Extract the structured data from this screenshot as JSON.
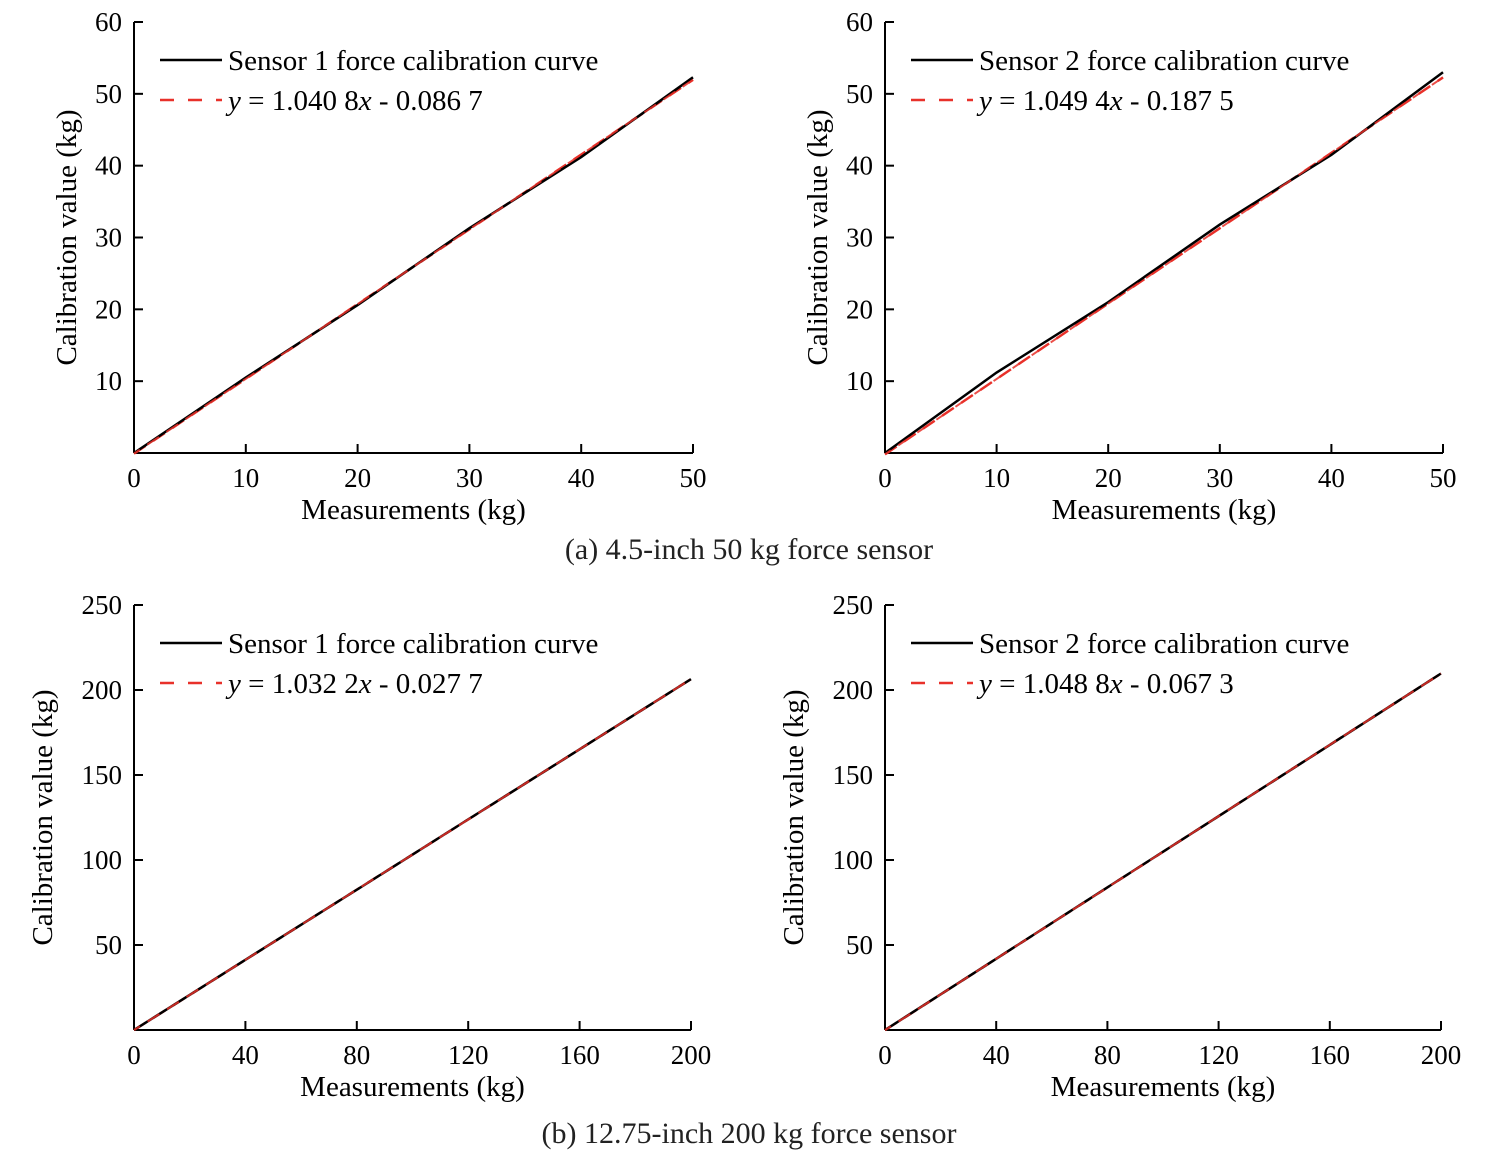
{
  "figure": {
    "captions": [
      "(a) 4.5-inch 50 kg force sensor",
      "(b) 12.75-inch 200 kg force sensor"
    ]
  },
  "colors": {
    "curve": "#000000",
    "fit": "#e8312a",
    "axis": "#000000"
  },
  "chart_data": [
    {
      "id": "a-sensor1",
      "type": "line",
      "xlabel": "Measurements (kg)",
      "ylabel": "Calibration value (kg)",
      "xlim": [
        0,
        50
      ],
      "ylim": [
        0,
        60
      ],
      "xticks": [
        0,
        10,
        20,
        30,
        40,
        50
      ],
      "yticks": [
        10,
        20,
        30,
        40,
        50,
        60
      ],
      "legend_position": "top-left",
      "series": [
        {
          "name": "Sensor 1 force calibration curve",
          "style": "solid",
          "x": [
            0,
            10,
            20,
            30,
            40,
            50
          ],
          "y": [
            0,
            10.5,
            20.6,
            31.3,
            41.2,
            52.3
          ]
        },
        {
          "name": "y = 1.040 8x - 0.086 7",
          "style": "dashed",
          "legend_parts": {
            "y": "y",
            "eq": " = 1.040 8",
            "x": "x",
            "rest": " - 0.086 7"
          },
          "slope": 1.0408,
          "intercept": -0.0867
        }
      ]
    },
    {
      "id": "a-sensor2",
      "type": "line",
      "xlabel": "Measurements (kg)",
      "ylabel": "Calibration value (kg)",
      "xlim": [
        0,
        50
      ],
      "ylim": [
        0,
        60
      ],
      "xticks": [
        0,
        10,
        20,
        30,
        40,
        50
      ],
      "yticks": [
        10,
        20,
        30,
        40,
        50,
        60
      ],
      "legend_position": "top-left",
      "series": [
        {
          "name": "Sensor 2 force calibration curve",
          "style": "solid",
          "x": [
            0,
            10,
            20,
            30,
            40,
            50
          ],
          "y": [
            0,
            11.2,
            21.0,
            31.8,
            41.5,
            53.0
          ]
        },
        {
          "name": "y = 1.049 4x - 0.187 5",
          "style": "dashed",
          "legend_parts": {
            "y": "y",
            "eq": " = 1.049 4",
            "x": "x",
            "rest": " - 0.187 5"
          },
          "slope": 1.0494,
          "intercept": -0.1875
        }
      ]
    },
    {
      "id": "b-sensor1",
      "type": "line",
      "xlabel": "Measurements (kg)",
      "ylabel": "Calibration value (kg)",
      "xlim": [
        0,
        200
      ],
      "ylim": [
        0,
        250
      ],
      "xticks": [
        0,
        40,
        80,
        120,
        160,
        200
      ],
      "yticks": [
        50,
        100,
        150,
        200,
        250
      ],
      "legend_position": "top-left",
      "series": [
        {
          "name": "Sensor 1 force calibration curve",
          "style": "solid",
          "x": [
            0,
            40,
            80,
            120,
            160,
            200
          ],
          "y": [
            0,
            41.3,
            82.5,
            123.9,
            165.1,
            206.4
          ]
        },
        {
          "name": "y = 1.032 2x - 0.027 7",
          "style": "dashed",
          "legend_parts": {
            "y": "y",
            "eq": " = 1.032 2",
            "x": "x",
            "rest": " - 0.027 7"
          },
          "slope": 1.0322,
          "intercept": -0.0277
        }
      ]
    },
    {
      "id": "b-sensor2",
      "type": "line",
      "xlabel": "Measurements (kg)",
      "ylabel": "Calibration value (kg)",
      "xlim": [
        0,
        200
      ],
      "ylim": [
        0,
        250
      ],
      "xticks": [
        0,
        40,
        80,
        120,
        160,
        200
      ],
      "yticks": [
        50,
        100,
        150,
        200,
        250
      ],
      "legend_position": "top-left",
      "series": [
        {
          "name": "Sensor 2 force calibration curve",
          "style": "solid",
          "x": [
            0,
            40,
            80,
            120,
            160,
            200
          ],
          "y": [
            0,
            41.9,
            83.9,
            125.8,
            167.7,
            209.7
          ]
        },
        {
          "name": "y = 1.048 8x - 0.067 3",
          "style": "dashed",
          "legend_parts": {
            "y": "y",
            "eq": " = 1.048 8",
            "x": "x",
            "rest": " - 0.067 3"
          },
          "slope": 1.0488,
          "intercept": -0.0673
        }
      ]
    }
  ]
}
